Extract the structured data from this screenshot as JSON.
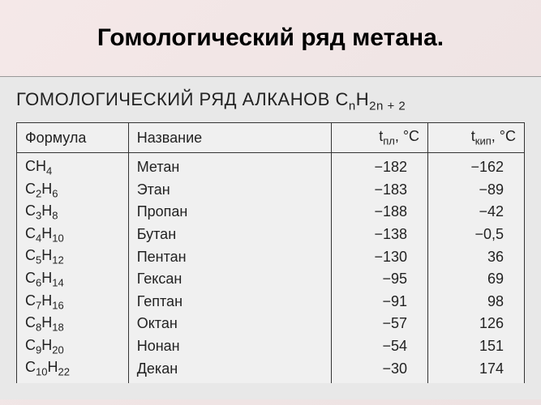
{
  "title": "Гомологический ряд метана.",
  "subtitle_prefix": "ГОМОЛОГИЧЕСКИЙ РЯД АЛКАНОВ C",
  "subtitle_sub1": "n",
  "subtitle_mid": "H",
  "subtitle_sub2": "2n + 2",
  "columns": {
    "formula": "Формула",
    "name": "Название",
    "melt_prefix": "t",
    "melt_sub": "пл",
    "melt_suffix": ", °C",
    "boil_prefix": "t",
    "boil_sub": "кип",
    "boil_suffix": ", °C"
  },
  "rows": [
    {
      "f_pre": "CH",
      "f_sub": "4",
      "f_mid": "",
      "f_sub2": "",
      "name": "Метан",
      "melt": "−182",
      "boil": "−162"
    },
    {
      "f_pre": "C",
      "f_sub": "2",
      "f_mid": "H",
      "f_sub2": "6",
      "name": "Этан",
      "melt": "−183",
      "boil": "−89"
    },
    {
      "f_pre": "C",
      "f_sub": "3",
      "f_mid": "H",
      "f_sub2": "8",
      "name": "Пропан",
      "melt": "−188",
      "boil": "−42"
    },
    {
      "f_pre": "C",
      "f_sub": "4",
      "f_mid": "H",
      "f_sub2": "10",
      "name": "Бутан",
      "melt": "−138",
      "boil": "−0,5"
    },
    {
      "f_pre": "C",
      "f_sub": "5",
      "f_mid": "H",
      "f_sub2": "12",
      "name": "Пентан",
      "melt": "−130",
      "boil": "36"
    },
    {
      "f_pre": "C",
      "f_sub": "6",
      "f_mid": "H",
      "f_sub2": "14",
      "name": "Гексан",
      "melt": "−95",
      "boil": "69"
    },
    {
      "f_pre": "C",
      "f_sub": "7",
      "f_mid": "H",
      "f_sub2": "16",
      "name": "Гептан",
      "melt": "−91",
      "boil": "98"
    },
    {
      "f_pre": "C",
      "f_sub": "8",
      "f_mid": "H",
      "f_sub2": "18",
      "name": "Октан",
      "melt": "−57",
      "boil": "126"
    },
    {
      "f_pre": "C",
      "f_sub": "9",
      "f_mid": "H",
      "f_sub2": "20",
      "name": "Нонан",
      "melt": "−54",
      "boil": "151"
    },
    {
      "f_pre": "C",
      "f_sub": "10",
      "f_mid": "H",
      "f_sub2": "22",
      "name": "Декан",
      "melt": "−30",
      "boil": "174"
    }
  ],
  "styling": {
    "background_gradient": [
      "#f5e8e8",
      "#f0e5e5",
      "#ede2e2"
    ],
    "content_bg": "#e8e8e8",
    "table_bg": "#f0f0f0",
    "border_color": "#333333",
    "text_color": "#222222",
    "title_fontsize": 30,
    "subtitle_fontsize": 22,
    "cell_fontsize": 18,
    "col_widths": {
      "formula": "22%",
      "name": "40%",
      "melt": "19%",
      "boil": "19%"
    }
  }
}
